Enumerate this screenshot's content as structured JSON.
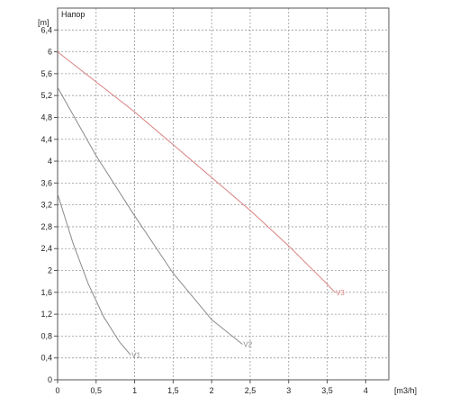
{
  "chart_data": {
    "type": "line",
    "title": "",
    "plot_title": "Напор",
    "xlabel": "[m3/h]",
    "ylabel": "[m]",
    "xlim": [
      0,
      4.3
    ],
    "ylim": [
      0,
      6.8
    ],
    "x_ticks": [
      0,
      0.5,
      1,
      1.5,
      2,
      2.5,
      3,
      3.5,
      4
    ],
    "x_tick_labels": [
      "0",
      "0,5",
      "1",
      "1,5",
      "2",
      "2,5",
      "3",
      "3,5",
      "4"
    ],
    "y_ticks": [
      0,
      0.4,
      0.8,
      1.2,
      1.6,
      2,
      2.4,
      2.8,
      3.2,
      3.6,
      4,
      4.4,
      4.8,
      5.2,
      5.6,
      6,
      6.4
    ],
    "y_tick_labels": [
      "0",
      "0,4",
      "0,8",
      "1,2",
      "1,6",
      "2",
      "2,4",
      "2,8",
      "3,2",
      "3,6",
      "4",
      "4,4",
      "4,8",
      "5,2",
      "5,6",
      "6",
      "6,4"
    ],
    "grid": true,
    "series": [
      {
        "name": "V1",
        "color": "#8a8a8a",
        "x": [
          0,
          0.2,
          0.4,
          0.6,
          0.8,
          0.95
        ],
        "y": [
          3.4,
          2.5,
          1.75,
          1.15,
          0.7,
          0.45
        ]
      },
      {
        "name": "V2",
        "color": "#8a8a8a",
        "x": [
          0,
          0.5,
          1,
          1.5,
          2,
          2.4
        ],
        "y": [
          5.35,
          4.1,
          3.0,
          1.95,
          1.1,
          0.65
        ]
      },
      {
        "name": "V3",
        "color": "#d98080",
        "x": [
          0,
          0.5,
          1,
          1.5,
          2,
          2.5,
          3,
          3.5,
          3.6
        ],
        "y": [
          6.0,
          5.45,
          4.9,
          4.3,
          3.7,
          3.1,
          2.45,
          1.75,
          1.6
        ]
      }
    ]
  }
}
